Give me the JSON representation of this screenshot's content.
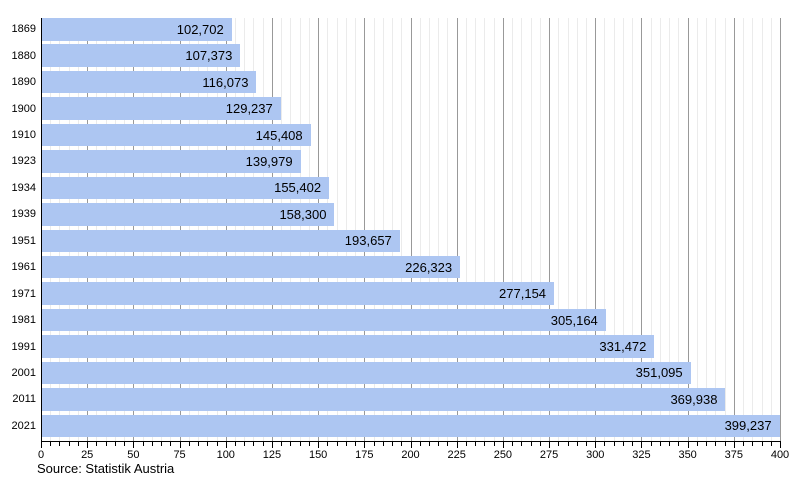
{
  "chart_data": {
    "type": "bar",
    "orientation": "horizontal",
    "title": "",
    "xlabel": "",
    "ylabel": "",
    "categories": [
      "1869",
      "1880",
      "1890",
      "1900",
      "1910",
      "1923",
      "1934",
      "1939",
      "1951",
      "1961",
      "1971",
      "1981",
      "1991",
      "2001",
      "2011",
      "2021"
    ],
    "values": [
      102702,
      107373,
      116073,
      129237,
      145408,
      139979,
      155402,
      158300,
      193657,
      226323,
      277154,
      305164,
      331472,
      351095,
      369938,
      399237
    ],
    "value_labels": [
      "102,702",
      "107,373",
      "116,073",
      "129,237",
      "145,408",
      "139,979",
      "155,402",
      "158,300",
      "193,657",
      "226,323",
      "277,154",
      "305,164",
      "331,472",
      "351,095",
      "369,938",
      "399,237"
    ],
    "x_axis": {
      "min": 0,
      "max": 400,
      "major_tick_step": 25,
      "minor_tick_step": 5,
      "tick_labels": [
        "0",
        "25",
        "50",
        "75",
        "100",
        "125",
        "150",
        "175",
        "200",
        "225",
        "250",
        "275",
        "300",
        "325",
        "350",
        "375",
        "400"
      ],
      "values_scale": "thousands"
    },
    "legend": null,
    "grid": "vertical-only",
    "source": "Source: Statistik Austria",
    "colors": {
      "bar_fill": "#adc6f2",
      "grid_major": "#999999",
      "grid_minor": "#ebebeb",
      "axis": "#000000",
      "text": "#000000",
      "background": "#ffffff"
    }
  }
}
